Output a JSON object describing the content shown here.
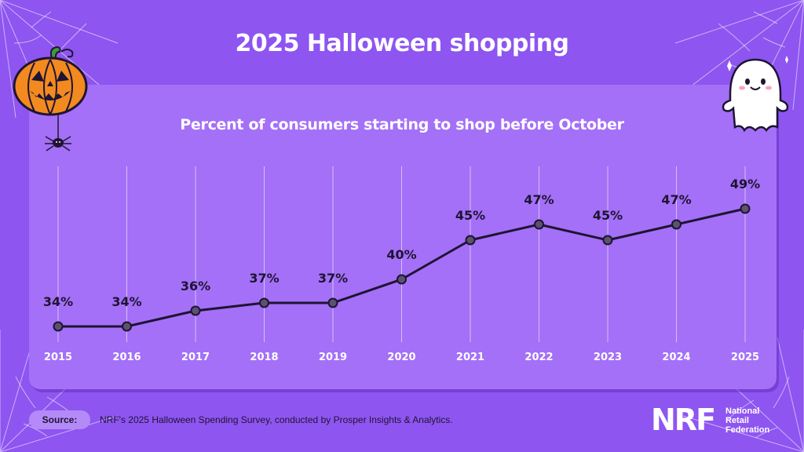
{
  "header": {
    "title": "2025 Halloween shopping"
  },
  "colors": {
    "background": "#8e55f0",
    "panel": "#a470f7",
    "line": "#1e1433",
    "marker": "#5b5270"
  },
  "chart_data": {
    "type": "line",
    "title": "Percent of consumers starting to shop before October",
    "xlabel": "",
    "ylabel": "",
    "categories": [
      "2015",
      "2016",
      "2017",
      "2018",
      "2019",
      "2020",
      "2021",
      "2022",
      "2023",
      "2024",
      "2025"
    ],
    "values": [
      34,
      34,
      36,
      37,
      37,
      40,
      45,
      47,
      45,
      47,
      49
    ],
    "value_labels": [
      "34%",
      "34%",
      "36%",
      "37%",
      "37%",
      "40%",
      "45%",
      "47%",
      "45%",
      "47%",
      "49%"
    ],
    "unit": "%",
    "grid": "vertical"
  },
  "footer": {
    "source_label": "Source:",
    "source_text": "NRF's 2025 Halloween Spending Survey, conducted by Prosper Insights & Analytics.",
    "logo_text": "NRF",
    "org_name": [
      "National",
      "Retail",
      "Federation"
    ]
  },
  "icons": {
    "pumpkin": "pumpkin-icon",
    "spider": "spider-icon",
    "ghost": "ghost-icon",
    "sparkle": "sparkle-icon",
    "web": "spider-web-icon"
  }
}
